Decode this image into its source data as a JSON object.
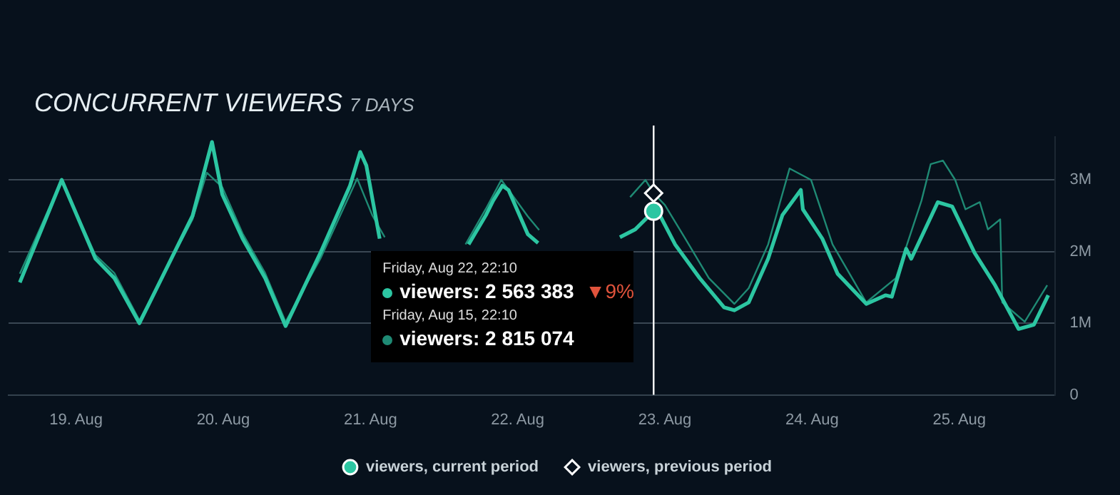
{
  "chart_data": {
    "type": "line",
    "title": "CONCURRENT VIEWERS",
    "subtitle": "7 DAYS",
    "xlim": [
      "--08-18T13:00",
      "--08-25T15:40"
    ],
    "xticks": [
      {
        "value": "--08-19",
        "label": "19. Aug"
      },
      {
        "value": "--08-20",
        "label": "20. Aug"
      },
      {
        "value": "--08-21",
        "label": "21. Aug"
      },
      {
        "value": "--08-22",
        "label": "22. Aug"
      },
      {
        "value": "--08-23",
        "label": "23. Aug"
      },
      {
        "value": "--08-24",
        "label": "24. Aug"
      },
      {
        "value": "--08-25",
        "label": "25. Aug"
      }
    ],
    "ylim": [
      0,
      3.6
    ],
    "yticks": [
      0,
      {
        "value": 1,
        "label": "1M"
      },
      {
        "value": 2,
        "label": "2M"
      },
      {
        "value": 3,
        "label": "3M"
      }
    ],
    "grid": "y",
    "legend": "bottom",
    "ref_lines": [
      {
        "axis": "x",
        "value": "--08-22T22:10",
        "color": "#ffffff"
      }
    ],
    "annotations": [
      "Friday, Aug 22, 22:10",
      "viewers: 2 563 383",
      "▼9%",
      "Friday, Aug 15, 22:10",
      "viewers: 2 815 074"
    ],
    "series": [
      {
        "name": "viewers, current period",
        "color": "#2cc6a2",
        "x": [
          "--08-18T14:50",
          "--08-18T21:40",
          "--08-19T03:10",
          "--08-19T06:15",
          "--08-19T10:20",
          "--08-19T19:00",
          "--08-19T22:10",
          "--08-19T23:50",
          "--08-20T03:10",
          "--08-20T06:50",
          "--08-20T10:10",
          "--08-20T15:50",
          "--08-20T20:40",
          "--08-20T22:20",
          "--08-20T23:20",
          "--08-21T01:30",
          "--08-21T08:00",
          "--08-21T16:00",
          "--08-21T18:50",
          "--08-21T20:00",
          "--08-21T21:30",
          "--08-21T22:30",
          "--08-22T01:40",
          "--08-22T03:20",
          "--08-22T10:00",
          "--08-22T16:40",
          "--08-22T19:10",
          "--08-22T22:10",
          "--08-22T23:10",
          "--08-23T01:40",
          "--08-23T05:40",
          "--08-23T09:40",
          "--08-23T11:20",
          "--08-23T13:40",
          "--08-23T16:50",
          "--08-23T19:10",
          "--08-23T22:10",
          "--08-23T22:30",
          "--08-24T01:40",
          "--08-24T04:10",
          "--08-24T08:50",
          "--08-24T12:00",
          "--08-24T13:00",
          "--08-24T15:20",
          "--08-24T16:10",
          "--08-24T20:30",
          "--08-24T22:50",
          "--08-25T02:30",
          "--08-25T05:50",
          "--08-25T09:40",
          "--08-25T12:10",
          "--08-25T14:30"
        ],
        "values": [
          1.57,
          3.0,
          1.9,
          1.63,
          1.0,
          2.5,
          3.53,
          2.8,
          2.18,
          1.63,
          0.96,
          1.98,
          2.92,
          3.39,
          3.2,
          2.18,
          null,
          2.1,
          2.51,
          2.71,
          2.92,
          2.86,
          2.24,
          2.12,
          null,
          2.2,
          2.31,
          2.563383,
          2.51,
          2.1,
          1.63,
          1.22,
          1.18,
          1.29,
          1.9,
          2.51,
          2.86,
          2.59,
          2.18,
          1.69,
          1.27,
          1.39,
          1.37,
          2.04,
          1.9,
          2.69,
          2.63,
          1.98,
          1.53,
          0.92,
          0.98,
          1.39
        ]
      },
      {
        "name": "viewers, previous period",
        "color": "#1f8a74",
        "x": [
          "--08-18T14:50",
          "--08-18T21:40",
          "--08-19T03:10",
          "--08-19T06:15",
          "--08-19T10:20",
          "--08-19T19:00",
          "--08-19T21:20",
          "--08-19T23:50",
          "--08-20T03:10",
          "--08-20T06:50",
          "--08-20T10:10",
          "--08-20T15:50",
          "--08-20T20:40",
          "--08-20T21:50",
          "--08-21T00:20",
          "--08-21T02:20",
          "--08-21T08:00",
          "--08-21T15:30",
          "--08-21T18:50",
          "--08-21T21:20",
          "--08-22T01:40",
          "--08-22T03:30",
          "--08-22T10:00",
          "--08-22T18:20",
          "--08-22T20:50",
          "--08-22T22:10",
          "--08-23T00:00",
          "--08-23T03:20",
          "--08-23T07:10",
          "--08-23T11:20",
          "--08-23T13:40",
          "--08-23T16:50",
          "--08-23T20:20",
          "--08-23T23:50",
          "--08-24T03:20",
          "--08-24T08:50",
          "--08-24T13:40",
          "--08-24T17:50",
          "--08-24T19:20",
          "--08-24T21:20",
          "--08-24T23:20",
          "--08-25T01:00",
          "--08-25T03:20",
          "--08-25T04:40",
          "--08-25T06:40",
          "--08-25T07:00",
          "--08-25T10:40",
          "--08-25T14:20"
        ],
        "values": [
          1.69,
          3.0,
          1.95,
          1.7,
          1.04,
          2.45,
          3.1,
          2.9,
          2.25,
          1.7,
          1.02,
          1.9,
          2.8,
          3.02,
          2.5,
          2.2,
          null,
          2.1,
          2.6,
          3.0,
          2.49,
          2.3,
          null,
          2.76,
          3.0,
          2.815074,
          2.65,
          2.18,
          1.63,
          1.27,
          1.49,
          2.1,
          3.16,
          3.0,
          2.1,
          1.29,
          1.63,
          2.71,
          3.22,
          3.27,
          3.0,
          2.59,
          2.69,
          2.31,
          2.45,
          1.29,
          1.02,
          1.53
        ]
      }
    ]
  }
}
